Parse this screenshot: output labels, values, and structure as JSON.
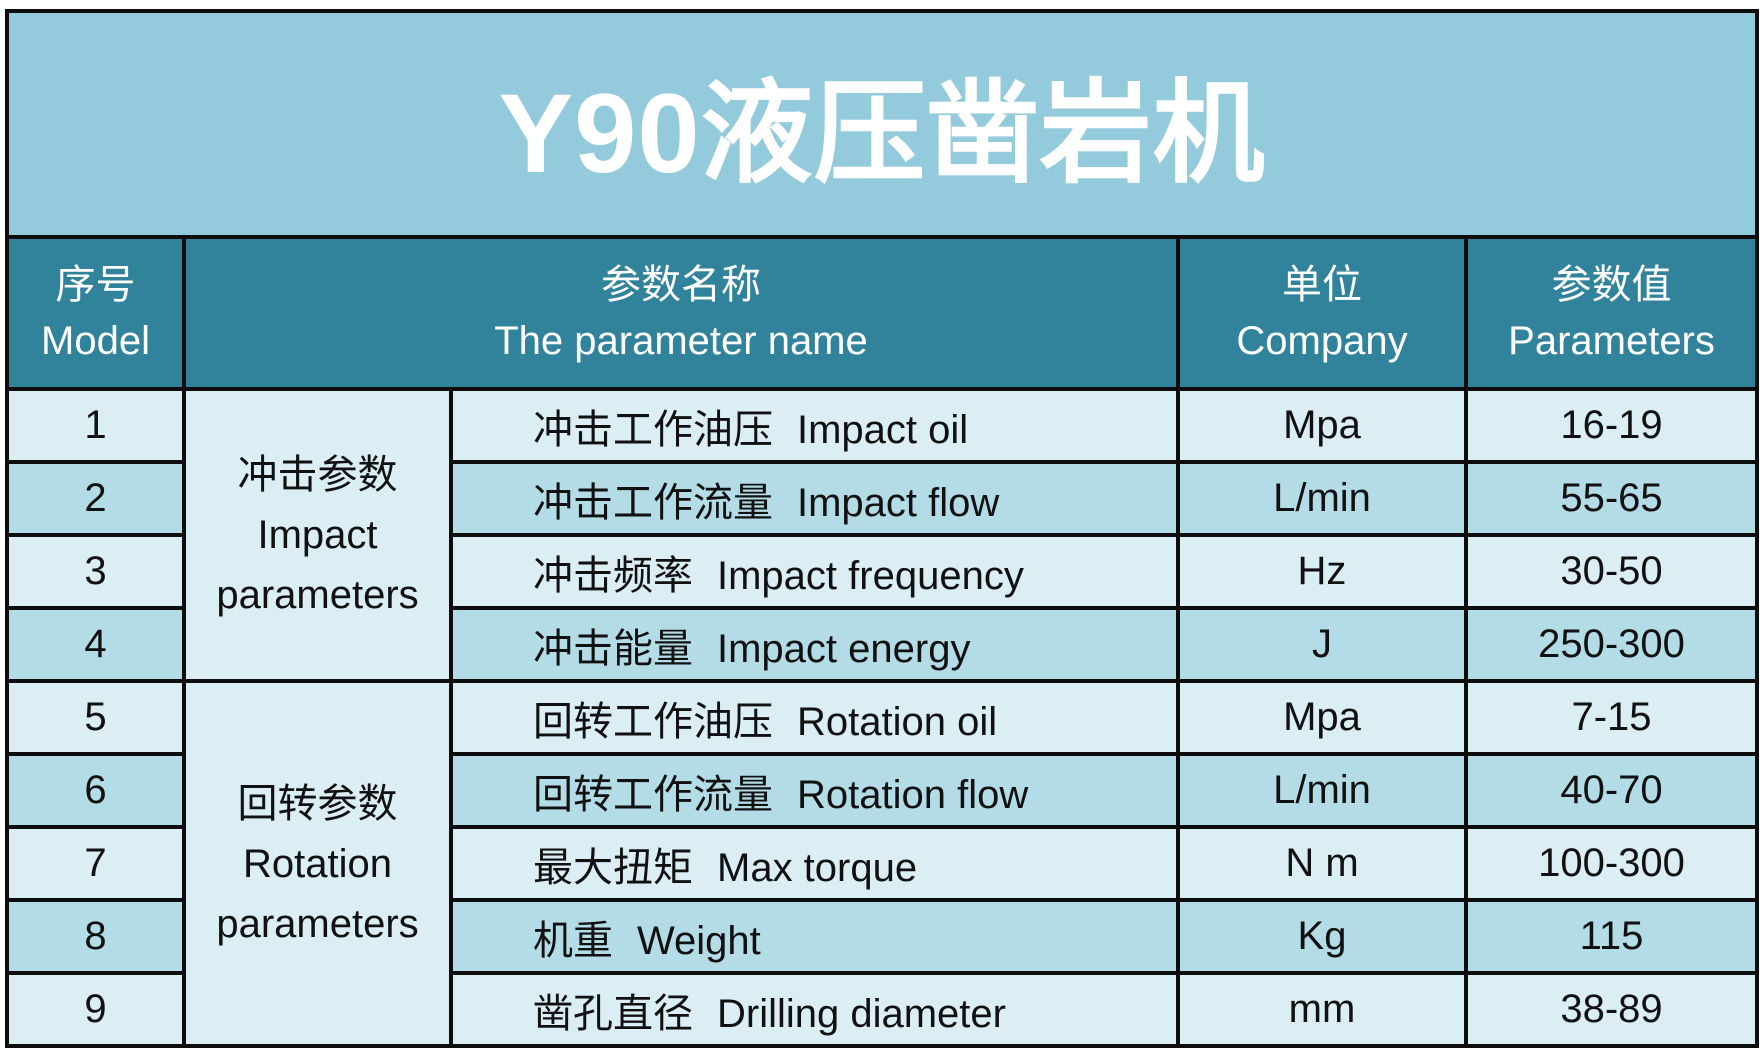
{
  "title": "Y90液压凿岩机",
  "colors": {
    "title_bg": "#94cbdc",
    "header_bg": "#31829b",
    "row_light": "#daeef4",
    "row_dark": "#b4dce6",
    "border": "#0d0d0d"
  },
  "headers": [
    {
      "zh": "序号",
      "en": "Model"
    },
    {
      "zh": "参数名称",
      "en": "The parameter name"
    },
    {
      "zh": "单位",
      "en": "Company"
    },
    {
      "zh": "参数值",
      "en": "Parameters"
    }
  ],
  "groups": [
    {
      "zh": "冲击参数",
      "en1": "Impact",
      "en2": "parameters"
    },
    {
      "zh": "回转参数",
      "en1": "Rotation",
      "en2": "parameters"
    }
  ],
  "rows": [
    {
      "no": "1",
      "zh": "冲击工作油压",
      "en": "Impact oil",
      "unit": "Mpa",
      "value": "16-19"
    },
    {
      "no": "2",
      "zh": "冲击工作流量",
      "en": "Impact flow",
      "unit": "L/min",
      "value": "55-65"
    },
    {
      "no": "3",
      "zh": "冲击频率",
      "en": "Impact frequency",
      "unit": "Hz",
      "value": "30-50"
    },
    {
      "no": "4",
      "zh": "冲击能量",
      "en": "Impact energy",
      "unit": "J",
      "value": "250-300"
    },
    {
      "no": "5",
      "zh": "回转工作油压",
      "en": "Rotation oil",
      "unit": "Mpa",
      "value": "7-15"
    },
    {
      "no": "6",
      "zh": "回转工作流量",
      "en": "Rotation flow",
      "unit": "L/min",
      "value": "40-70"
    },
    {
      "no": "7",
      "zh": "最大扭矩",
      "en": "Max torque",
      "unit": "N m",
      "value": "100-300"
    },
    {
      "no": "8",
      "zh": "机重",
      "en": "Weight",
      "unit": "Kg",
      "value": "115"
    },
    {
      "no": "9",
      "zh": "凿孔直径",
      "en": "Drilling diameter",
      "unit": "mm",
      "value": "38-89"
    }
  ]
}
